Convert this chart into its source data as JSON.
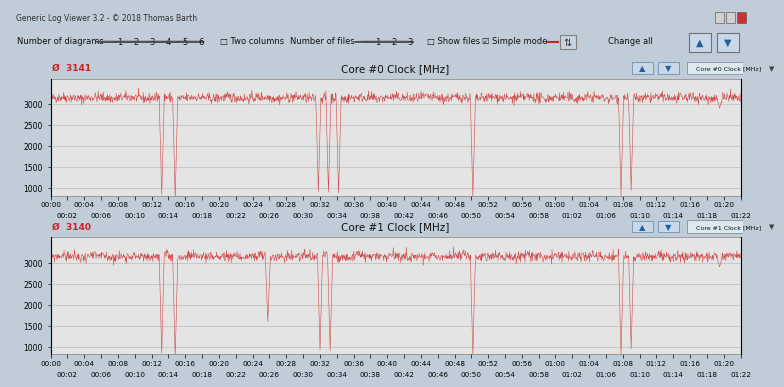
{
  "title_bar": "Generic Log Viewer 3.2 - © 2018 Thomas Barth",
  "chart0_title": "Core #0 Clock [MHz]",
  "chart1_title": "Core #1 Clock [MHz]",
  "chart0_max_label": "3141",
  "chart1_max_label": "3140",
  "chart0_corner_label": "Core #0 Clock [MHz]",
  "chart1_corner_label": "Core #1 Clock [MHz]",
  "ylabel_ticks": [
    1000,
    1500,
    2000,
    2500,
    3000
  ],
  "ylim": [
    820,
    3600
  ],
  "x_duration_seconds": 82,
  "base_clock": 3120,
  "noise_amplitude": 60,
  "spike_positions_s": [
    13.2,
    14.8,
    31.8,
    33.0,
    34.2,
    50.2,
    67.8,
    69.0,
    79.5
  ],
  "spike_depths": [
    850,
    750,
    920,
    900,
    880,
    800,
    820,
    950,
    2900
  ],
  "spike2_positions_s": [
    13.2,
    14.8,
    25.8,
    32.0,
    33.2,
    50.2,
    67.8,
    69.0,
    79.5
  ],
  "spike2_depths": [
    850,
    750,
    1600,
    920,
    900,
    800,
    820,
    950,
    2900
  ],
  "line_color": "#d04040",
  "plot_bg": "#e4e4e4",
  "grid_color": "#c8c8c8",
  "window_bg": "#c0ccd8",
  "panel_bg": "#d8e0e8",
  "titlebar_bg": "#b8c4d0",
  "toolbar_bg": "#dce4ec",
  "border_color": "#909090",
  "x_tick_labels_top": [
    "00:00",
    "00:04",
    "00:08",
    "00:12",
    "00:16",
    "00:20",
    "00:24",
    "00:28",
    "00:32",
    "00:36",
    "00:40",
    "00:44",
    "00:48",
    "00:52",
    "00:56",
    "01:00",
    "01:04",
    "01:08",
    "01:12",
    "01:16",
    "01:20"
  ],
  "x_tick_labels_bot": [
    "00:02",
    "00:06",
    "00:10",
    "00:14",
    "00:18",
    "00:22",
    "00:26",
    "00:30",
    "00:34",
    "00:38",
    "00:42",
    "00:46",
    "00:50",
    "00:54",
    "00:58",
    "01:02",
    "01:06",
    "01:10",
    "01:14",
    "01:18",
    "01:22"
  ],
  "x_tick_positions_top": [
    0,
    4,
    8,
    12,
    16,
    20,
    24,
    28,
    32,
    36,
    40,
    44,
    48,
    52,
    56,
    60,
    64,
    68,
    72,
    76,
    80
  ],
  "x_tick_positions_bot": [
    2,
    6,
    10,
    14,
    18,
    22,
    26,
    30,
    34,
    38,
    42,
    46,
    50,
    54,
    58,
    62,
    66,
    70,
    74,
    78,
    82
  ]
}
